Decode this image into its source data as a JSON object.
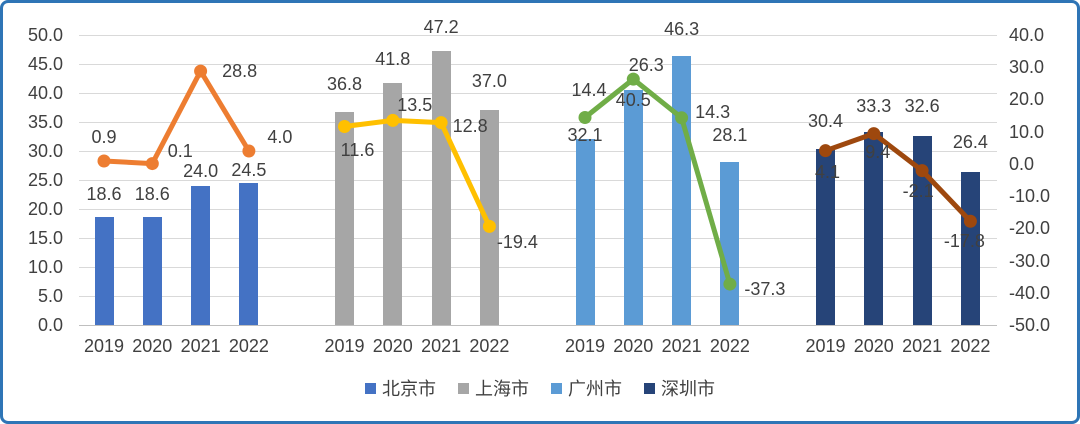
{
  "chart_data": {
    "type": "bar",
    "subtype": "bar+line combo, grouped by city",
    "categories": [
      "2019",
      "2020",
      "2021",
      "2022"
    ],
    "grid": true,
    "legend_position": "bottom",
    "left_axis": {
      "min": 0,
      "max": 50,
      "step": 5,
      "tick_labels": [
        "50.0",
        "45.0",
        "40.0",
        "35.0",
        "30.0",
        "25.0",
        "20.0",
        "15.0",
        "10.0",
        "5.0",
        "0.0"
      ]
    },
    "right_axis": {
      "min": -50,
      "max": 40,
      "step": 10,
      "tick_labels": [
        "40.0",
        "30.0",
        "20.0",
        "10.0",
        "0.0",
        "-10.0",
        "-20.0",
        "-30.0",
        "-40.0",
        "-50.0"
      ]
    },
    "bar_series": [
      {
        "name": "北京市",
        "color": "#4472C4",
        "values": [
          18.6,
          18.6,
          24.0,
          24.5
        ]
      },
      {
        "name": "上海市",
        "color": "#A6A6A6",
        "values": [
          36.8,
          41.8,
          47.2,
          37.0
        ]
      },
      {
        "name": "广州市",
        "color": "#5B9BD5",
        "values": [
          32.1,
          40.5,
          46.3,
          28.1
        ]
      },
      {
        "name": "深圳市",
        "color": "#264478",
        "values": [
          30.4,
          33.3,
          32.6,
          26.4
        ]
      }
    ],
    "line_series": [
      {
        "name": "北京市",
        "color": "#ED7D31",
        "values": [
          0.9,
          0.1,
          28.8,
          4.0
        ]
      },
      {
        "name": "上海市",
        "color": "#FFC000",
        "values": [
          11.6,
          13.5,
          12.8,
          -19.4
        ]
      },
      {
        "name": "广州市",
        "color": "#70AD47",
        "values": [
          14.4,
          26.3,
          14.3,
          -37.3
        ]
      },
      {
        "name": "深圳市",
        "color": "#9E480E",
        "values": [
          4.1,
          9.4,
          -2.1,
          -17.8
        ]
      }
    ],
    "legend": [
      "北京市",
      "上海市",
      "广州市",
      "深圳市"
    ]
  },
  "colors": {
    "frame_border": "#2E75B6",
    "gridline": "#D9D9D9",
    "baseline": "#BFBFBF",
    "text": "#404040",
    "background": "#FFFFFF"
  }
}
